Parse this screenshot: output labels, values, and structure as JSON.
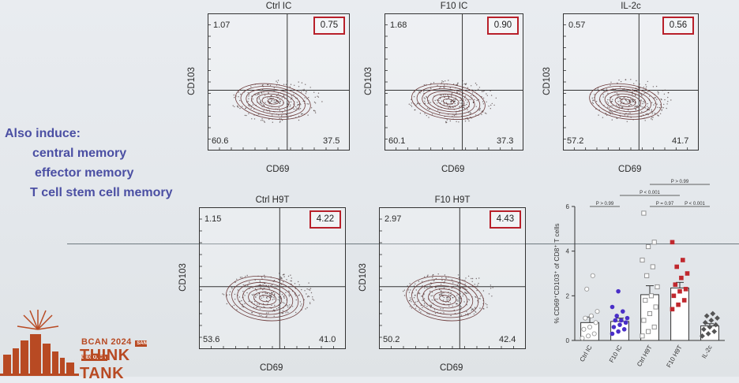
{
  "side_text": {
    "line1": "Also induce:",
    "line2": "central memory",
    "line3": "effector memory",
    "line4": "T cell stem cell memory"
  },
  "flow_plots": [
    {
      "id": "ctrl-ic",
      "title": "Ctrl IC",
      "ylabel": "CD103",
      "xlabel": "CD69",
      "ul": "1.07",
      "ur": "0.75",
      "ll": "60.6",
      "lr": "37.5"
    },
    {
      "id": "f10-ic",
      "title": "F10 IC",
      "ylabel": "CD103",
      "xlabel": "CD69",
      "ul": "1.68",
      "ur": "0.90",
      "ll": "60.1",
      "lr": "37.3"
    },
    {
      "id": "il-2c",
      "title": "IL-2c",
      "ylabel": "CD103",
      "xlabel": "CD69",
      "ul": "0.57",
      "ur": "0.56",
      "ll": "57.2",
      "lr": "41.7"
    },
    {
      "id": "ctrl-h9t",
      "title": "Ctrl H9T",
      "ylabel": "CD103",
      "xlabel": "CD69",
      "ul": "1.15",
      "ur": "4.22",
      "ll": "53.6",
      "lr": "41.0"
    },
    {
      "id": "f10-h9t",
      "title": "F10 H9T",
      "ylabel": "CD103",
      "xlabel": "CD69",
      "ul": "2.97",
      "ur": "4.43",
      "ll": "50.2",
      "lr": "42.4"
    }
  ],
  "chart_data": {
    "type": "bar",
    "ylabel": "% CD69⁺CD103⁺ of CD8⁺ T cells",
    "ylim": [
      0,
      6
    ],
    "yticks": [
      "0",
      "2",
      "4",
      "6"
    ],
    "categories": [
      "Ctrl IC",
      "F10 IC",
      "Ctrl H9T",
      "F10 H9T",
      "IL-2c"
    ],
    "values": [
      0.8,
      0.85,
      2.05,
      2.35,
      0.65
    ],
    "errors": [
      0.25,
      0.15,
      0.4,
      0.25,
      0.1
    ],
    "colors": [
      "#ffffff",
      "#ffffff",
      "#ffffff",
      "#ffffff",
      "#ffffff"
    ],
    "point_colors": [
      "#9a9a9a",
      "#4a2fc8",
      "#8a8a8a",
      "#c0282e",
      "#555555"
    ],
    "points": [
      [
        0.1,
        0.2,
        0.3,
        0.5,
        0.6,
        0.8,
        1.0,
        1.1,
        1.3,
        2.3,
        2.9
      ],
      [
        0.3,
        0.4,
        0.5,
        0.6,
        0.7,
        0.8,
        0.9,
        0.9,
        1.0,
        1.1,
        1.3,
        1.5,
        2.2
      ],
      [
        0.2,
        0.4,
        0.6,
        0.9,
        1.2,
        1.5,
        1.8,
        2.0,
        2.4,
        2.9,
        3.3,
        3.6,
        4.2,
        4.4,
        5.7
      ],
      [
        1.4,
        1.6,
        1.8,
        2.0,
        2.2,
        2.3,
        2.5,
        2.8,
        3.0,
        3.3,
        3.6,
        4.4
      ],
      [
        0.2,
        0.3,
        0.4,
        0.5,
        0.6,
        0.7,
        0.8,
        0.9,
        1.0,
        1.1,
        1.2
      ]
    ],
    "comparisons": [
      {
        "label": "P > 0.99",
        "from": 0,
        "to": 1,
        "level": 0
      },
      {
        "label": "P = 0.97",
        "from": 2,
        "to": 3,
        "level": 0
      },
      {
        "label": "P < 0.001",
        "from": 3,
        "to": 4,
        "level": 0
      },
      {
        "label": "P < 0.001",
        "from": 1,
        "to": 3,
        "level": 1
      },
      {
        "label": "P > 0.99",
        "from": 2,
        "to": 4,
        "level": 2
      }
    ]
  },
  "logo": {
    "line1": "BCAN 2024",
    "badge": "SAN DIEGO, CA",
    "line2": "THINK TANK"
  }
}
